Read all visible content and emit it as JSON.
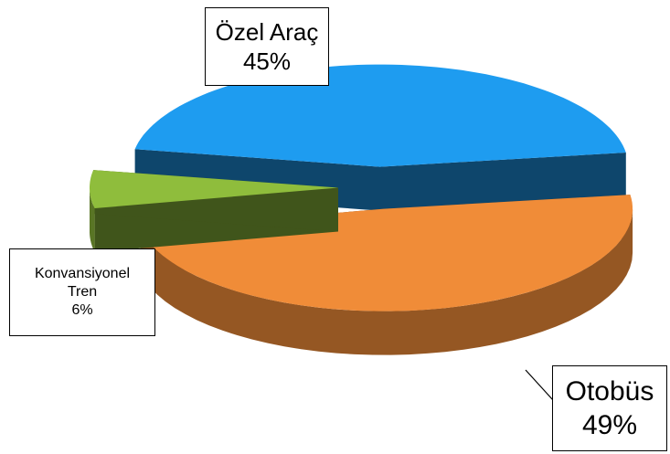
{
  "chart_data": {
    "type": "pie3d",
    "categories": [
      "Özel Araç",
      "Otobüs",
      "Konvansiyonel Tren"
    ],
    "values": [
      45,
      49,
      6
    ],
    "value_labels": [
      "45%",
      "49%",
      "6%"
    ],
    "colors": [
      "#1e9cf0",
      "#f08c38",
      "#8fbd3c"
    ]
  }
}
